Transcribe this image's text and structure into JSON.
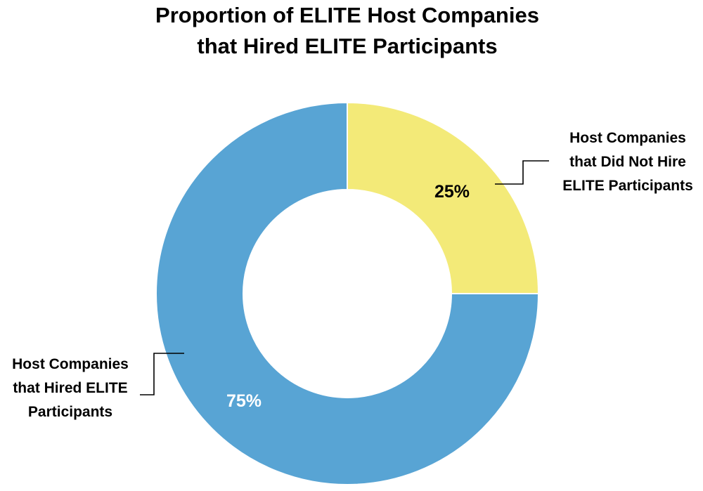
{
  "chart_data": {
    "type": "pie",
    "variant": "donut",
    "title_lines": [
      "Proportion of ELITE Host Companies",
      "that Hired ELITE Participants"
    ],
    "slices": [
      {
        "label_lines": [
          "Host Companies",
          "that Did Not Hire",
          "ELITE Participants"
        ],
        "value": 25,
        "value_label": "25%",
        "color": "#f3ea78",
        "value_label_color": "#000000"
      },
      {
        "label_lines": [
          "Host Companies",
          "that Hired ELITE",
          "Participants"
        ],
        "value": 75,
        "value_label": "75%",
        "color": "#58a4d4",
        "value_label_color": "#ffffff"
      }
    ],
    "legend": "none"
  }
}
